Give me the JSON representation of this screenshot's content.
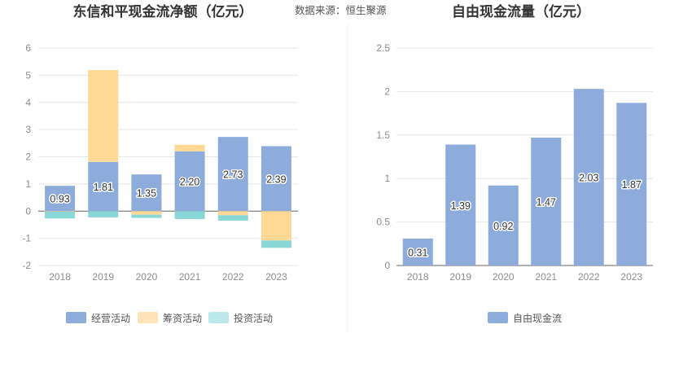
{
  "source": {
    "text": "数据来源：恒生聚源"
  },
  "chart_data": [
    {
      "type": "bar",
      "stacked": true,
      "title": "东信和平现金流净额（亿元）",
      "categories": [
        "2018",
        "2019",
        "2020",
        "2021",
        "2022",
        "2023"
      ],
      "ylim": [
        -2,
        6
      ],
      "yticks": [
        6,
        5,
        4,
        3,
        2,
        1,
        0,
        -1,
        -2
      ],
      "grid": true,
      "legend_position": "bottom",
      "series": [
        {
          "name": "经营活动",
          "color": "#8eacdb",
          "values": [
            0.93,
            1.81,
            1.35,
            2.2,
            2.73,
            2.39
          ],
          "labels": [
            "0.93",
            "1.81",
            "1.35",
            "2.20",
            "2.73",
            "2.39"
          ]
        },
        {
          "name": "筹资活动",
          "color": "#fed895",
          "values": [
            -0.02,
            3.38,
            -0.13,
            0.24,
            -0.15,
            -1.08
          ]
        },
        {
          "name": "投资活动",
          "color": "#8ad7d8",
          "values": [
            -0.25,
            -0.23,
            -0.12,
            -0.29,
            -0.2,
            -0.27
          ]
        }
      ],
      "legend": [
        {
          "name": "经营活动",
          "color": "#8eacdb"
        },
        {
          "name": "筹资活动",
          "color": "#fde3b7"
        },
        {
          "name": "投资活动",
          "color": "#bde8e9"
        }
      ]
    },
    {
      "type": "bar",
      "title": "自由现金流量（亿元）",
      "categories": [
        "2018",
        "2019",
        "2020",
        "2021",
        "2022",
        "2023"
      ],
      "ylim": [
        0,
        2.5
      ],
      "yticks": [
        "2.5",
        "2",
        "1.5",
        "1",
        "0.5",
        "0"
      ],
      "grid": true,
      "legend_position": "bottom",
      "series": [
        {
          "name": "自由现金流",
          "color": "#8eacdb",
          "values": [
            0.31,
            1.39,
            0.92,
            1.47,
            2.03,
            1.87
          ],
          "labels": [
            "0.31",
            "1.39",
            "0.92",
            "1.47",
            "2.03",
            "1.87"
          ]
        }
      ],
      "legend": [
        {
          "name": "自由现金流",
          "color": "#8eacdb"
        }
      ]
    }
  ]
}
